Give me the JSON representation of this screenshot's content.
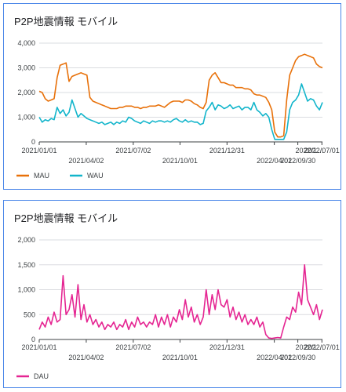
{
  "charts": [
    {
      "title": "P2P地震情報 モバイル",
      "chart_data": {
        "type": "line",
        "ylim": [
          0,
          4000
        ],
        "yticks": [
          "0",
          "1,000",
          "2,000",
          "3,000",
          "4,000"
        ],
        "yticks_values": [
          0,
          1000,
          2000,
          3000,
          4000
        ],
        "x_tick_labels_top": [
          "2021/01/01",
          "2021/07/02",
          "2021/12/31",
          "2022/07/01",
          "2022/1…"
        ],
        "x_tick_labels_bottom": [
          "2021/04/02",
          "2021/10/01",
          "2022/04/01",
          "2022/09/30"
        ],
        "grid": true,
        "legend_position": "bottom-left",
        "series": [
          {
            "name": "MAU",
            "color": "#e8710a",
            "values": [
              2050,
              2000,
              1750,
              1650,
              1700,
              1750,
              2600,
              3100,
              3150,
              3200,
              2450,
              2650,
              2700,
              2750,
              2800,
              2750,
              2700,
              1800,
              1650,
              1600,
              1550,
              1500,
              1450,
              1400,
              1350,
              1350,
              1350,
              1400,
              1400,
              1450,
              1450,
              1450,
              1400,
              1400,
              1350,
              1400,
              1400,
              1450,
              1450,
              1450,
              1500,
              1450,
              1400,
              1500,
              1600,
              1650,
              1650,
              1650,
              1600,
              1700,
              1700,
              1650,
              1550,
              1500,
              1400,
              1350,
              1600,
              2500,
              2700,
              2800,
              2600,
              2400,
              2400,
              2350,
              2300,
              2300,
              2200,
              2200,
              2200,
              2150,
              2150,
              2100,
              1950,
              1900,
              1900,
              1850,
              1800,
              1600,
              1300,
              400,
              200,
              200,
              250,
              1700,
              2700,
              3000,
              3300,
              3450,
              3500,
              3550,
              3500,
              3450,
              3400,
              3150,
              3050,
              3000
            ]
          },
          {
            "name": "WAU",
            "color": "#12b5cb",
            "values": [
              1000,
              800,
              900,
              850,
              950,
              900,
              1400,
              1150,
              1300,
              1050,
              1200,
              1700,
              1350,
              1000,
              1150,
              1050,
              950,
              900,
              850,
              800,
              750,
              800,
              700,
              750,
              800,
              700,
              800,
              750,
              850,
              800,
              1000,
              950,
              850,
              800,
              750,
              850,
              800,
              750,
              850,
              800,
              850,
              850,
              800,
              850,
              800,
              900,
              950,
              850,
              800,
              900,
              800,
              850,
              800,
              800,
              700,
              750,
              1250,
              1400,
              1600,
              1300,
              1500,
              1450,
              1350,
              1400,
              1500,
              1350,
              1400,
              1450,
              1300,
              1400,
              1400,
              1300,
              1600,
              1300,
              1200,
              1050,
              1150,
              1000,
              500,
              100,
              100,
              100,
              100,
              400,
              1300,
              1600,
              1700,
              1900,
              2350,
              2000,
              1650,
              1750,
              1700,
              1450,
              1300,
              1600
            ]
          }
        ]
      }
    },
    {
      "title": "P2P地震情報 モバイル",
      "chart_data": {
        "type": "line",
        "ylim": [
          0,
          2000
        ],
        "yticks": [
          "0",
          "500",
          "1,000",
          "1,500",
          "2,000"
        ],
        "yticks_values": [
          0,
          500,
          1000,
          1500,
          2000
        ],
        "x_tick_labels_top": [
          "2021/01/01",
          "2021/07/02",
          "2021/12/31",
          "2022/07/01",
          "2022/1…"
        ],
        "x_tick_labels_bottom": [
          "2021/04/02",
          "2021/10/01",
          "2022/04/01",
          "2022/09/30"
        ],
        "grid": true,
        "legend_position": "bottom-left",
        "series": [
          {
            "name": "DAU",
            "color": "#e52592",
            "values": [
              200,
              350,
              250,
              450,
              300,
              550,
              350,
              400,
              1280,
              500,
              600,
              900,
              450,
              1100,
              400,
              700,
              350,
              500,
              300,
              400,
              250,
              350,
              200,
              300,
              250,
              350,
              200,
              300,
              250,
              400,
              200,
              350,
              250,
              450,
              300,
              350,
              250,
              350,
              300,
              500,
              250,
              450,
              300,
              500,
              250,
              450,
              350,
              600,
              400,
              800,
              450,
              650,
              350,
              500,
              300,
              450,
              1000,
              500,
              900,
              600,
              1000,
              700,
              650,
              800,
              450,
              650,
              400,
              550,
              350,
              500,
              300,
              400,
              300,
              450,
              250,
              350,
              100,
              30,
              20,
              30,
              40,
              30,
              250,
              450,
              400,
              650,
              550,
              950,
              700,
              1500,
              800,
              650,
              500,
              700,
              400,
              600
            ]
          }
        ]
      }
    }
  ]
}
